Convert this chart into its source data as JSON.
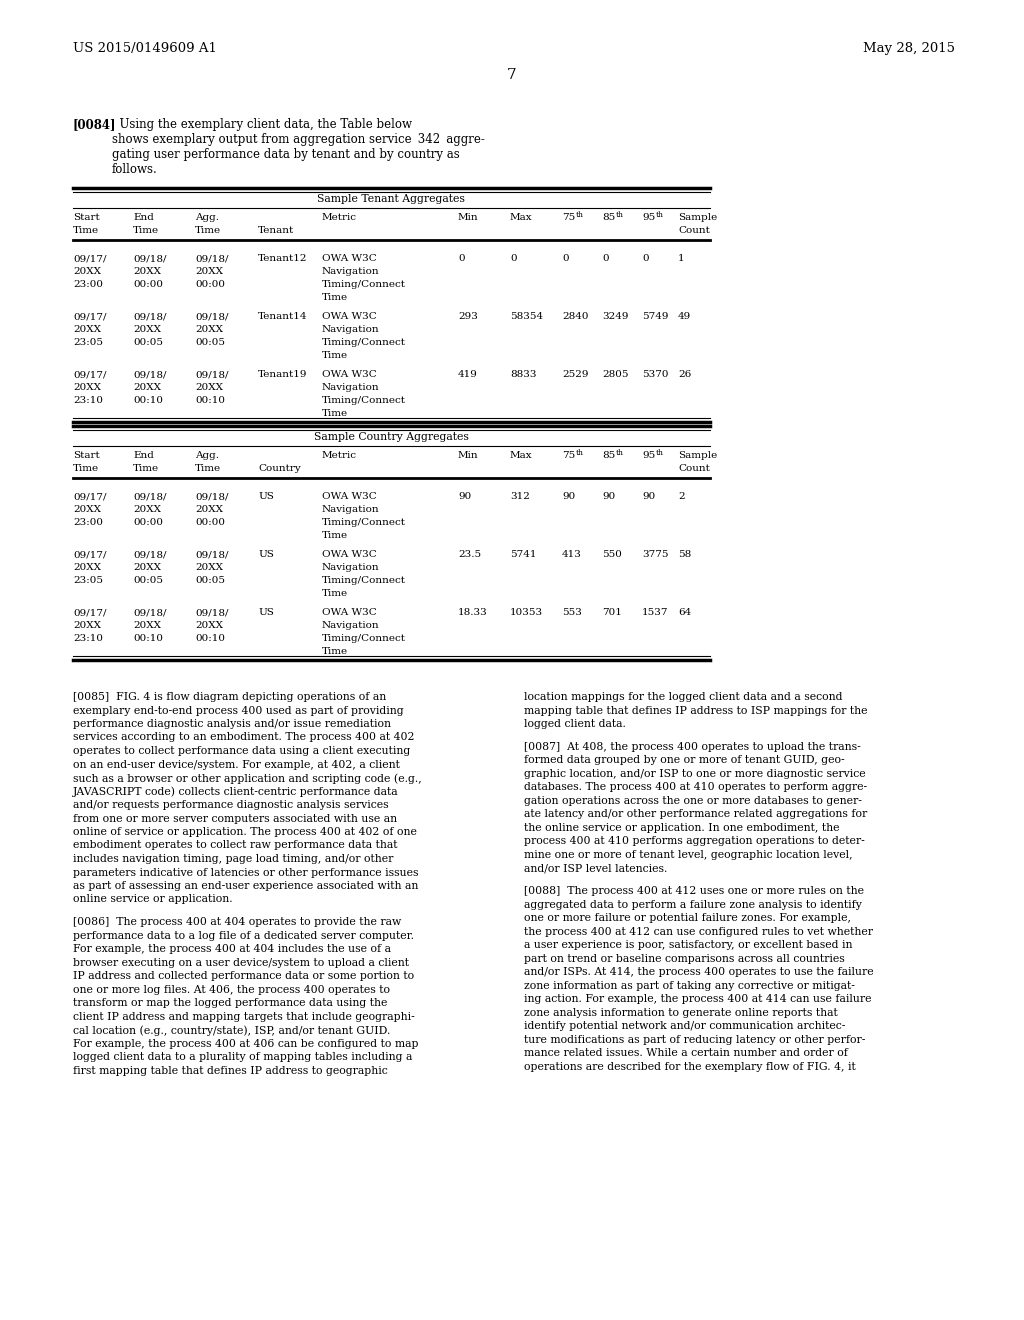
{
  "header_left": "US 2015/0149609 A1",
  "header_right": "May 28, 2015",
  "page_number": "7",
  "bg_color": "#ffffff",
  "table1_title": "Sample Tenant Aggregates",
  "table2_title": "Sample Country Aggregates",
  "table1_rows": [
    [
      "09/17/",
      "20XX",
      "23:00",
      "09/18/",
      "20XX",
      "00:00",
      "09/18/",
      "20XX",
      "00:00",
      "Tenant12",
      "OWA W3C",
      "Navigation",
      "Timing/Connect",
      "Time",
      "0",
      "0",
      "0",
      "0",
      "0",
      "1"
    ],
    [
      "09/17/",
      "20XX",
      "23:05",
      "09/18/",
      "20XX",
      "00:05",
      "09/18/",
      "20XX",
      "00:05",
      "Tenant14",
      "OWA W3C",
      "Navigation",
      "Timing/Connect",
      "Time",
      "293",
      "58354",
      "2840",
      "3249",
      "5749",
      "49"
    ],
    [
      "09/17/",
      "20XX",
      "23:10",
      "09/18/",
      "20XX",
      "00:10",
      "09/18/",
      "20XX",
      "00:10",
      "Tenant19",
      "OWA W3C",
      "Navigation",
      "Timing/Connect",
      "Time",
      "419",
      "8833",
      "2529",
      "2805",
      "5370",
      "26"
    ]
  ],
  "table2_rows": [
    [
      "09/17/",
      "20XX",
      "23:00",
      "09/18/",
      "20XX",
      "00:00",
      "09/18/",
      "20XX",
      "00:00",
      "US",
      "OWA W3C",
      "Navigation",
      "Timing/Connect",
      "Time",
      "90",
      "312",
      "90",
      "90",
      "90",
      "2"
    ],
    [
      "09/17/",
      "20XX",
      "23:05",
      "09/18/",
      "20XX",
      "00:05",
      "09/18/",
      "20XX",
      "00:05",
      "US",
      "OWA W3C",
      "Navigation",
      "Timing/Connect",
      "Time",
      "23.5",
      "5741",
      "413",
      "550",
      "3775",
      "58"
    ],
    [
      "09/17/",
      "20XX",
      "23:10",
      "09/18/",
      "20XX",
      "00:10",
      "09/18/",
      "20XX",
      "00:10",
      "US",
      "OWA W3C",
      "Navigation",
      "Timing/Connect",
      "Time",
      "18.33",
      "10353",
      "553",
      "701",
      "1537",
      "64"
    ]
  ]
}
